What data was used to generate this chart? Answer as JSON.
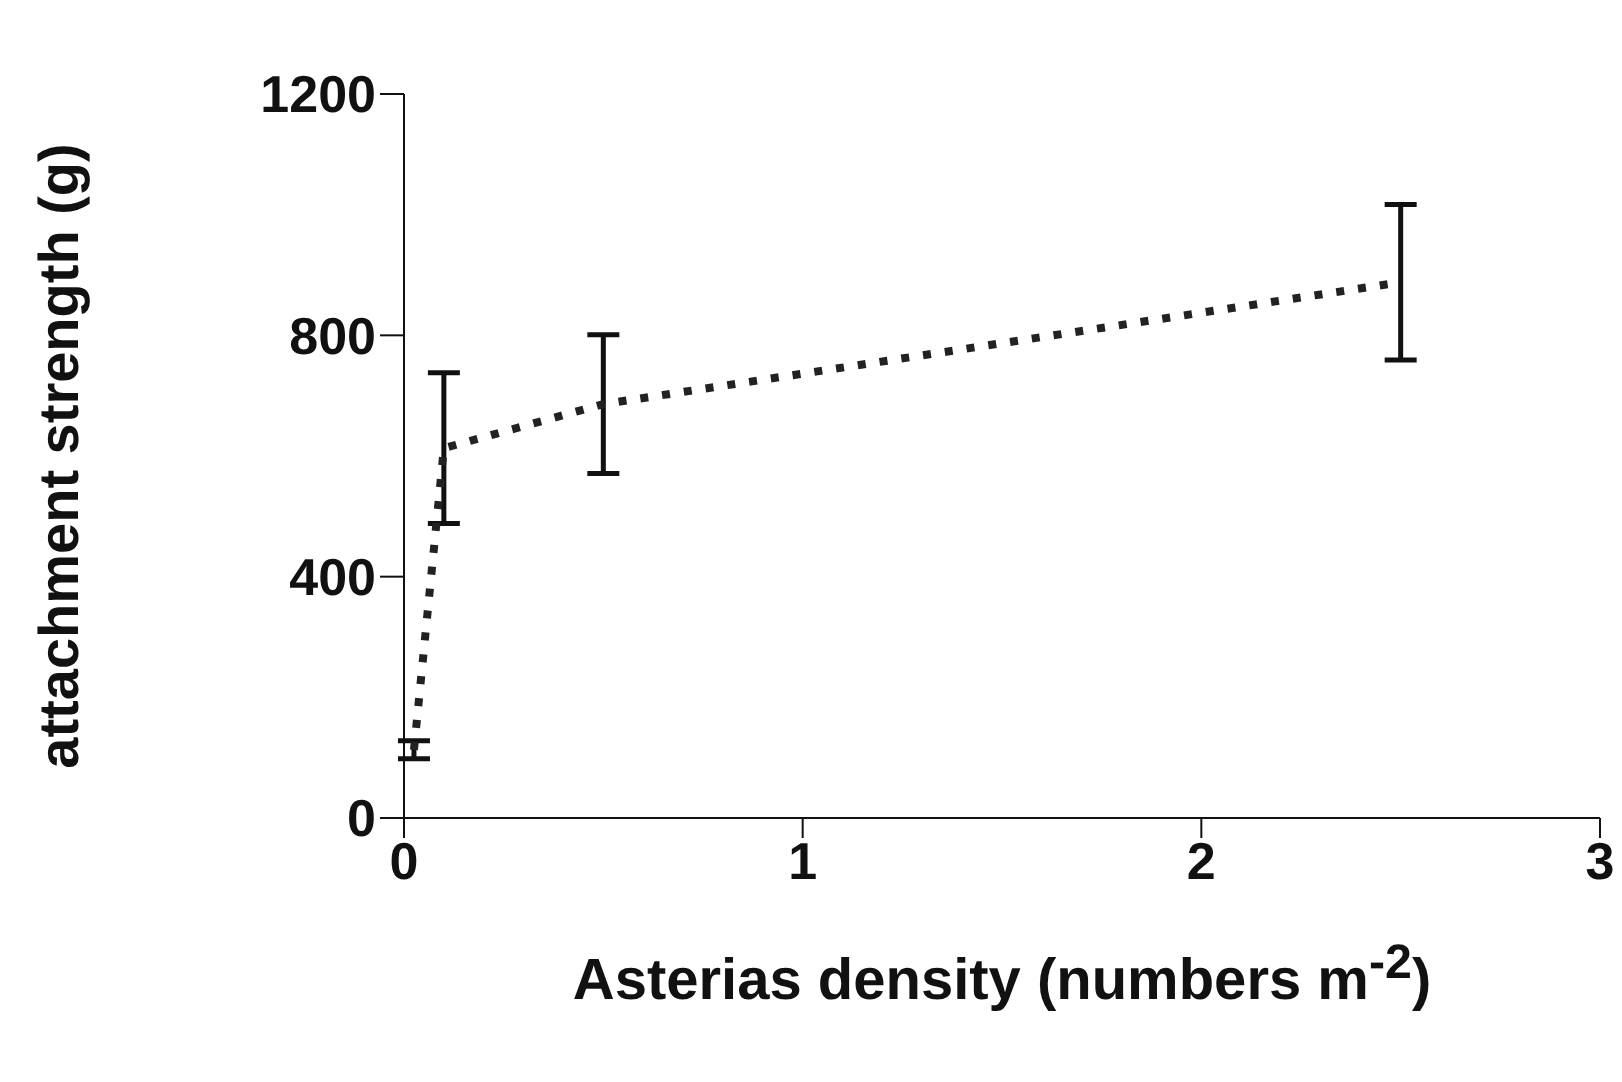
{
  "chart_data": {
    "type": "line",
    "xlabel": "Asterias density (numbers m$^{-2}$)",
    "ylabel": "attachment strength (g)",
    "x": [
      0.025,
      0.1,
      0.5,
      2.5
    ],
    "series": [
      {
        "color": "#222222",
        "values": [
          113,
          613,
          686,
          888
        ],
        "errors": [
          15,
          125,
          115,
          129
        ]
      }
    ],
    "xlim": [
      0,
      3
    ],
    "xticks": [
      0,
      1,
      2,
      3
    ],
    "ylim": [
      0,
      1200
    ],
    "yticks": [
      0,
      400,
      800,
      1200
    ],
    "grid": false,
    "legend": false,
    "marker": "none",
    "line_style": "dotted"
  }
}
